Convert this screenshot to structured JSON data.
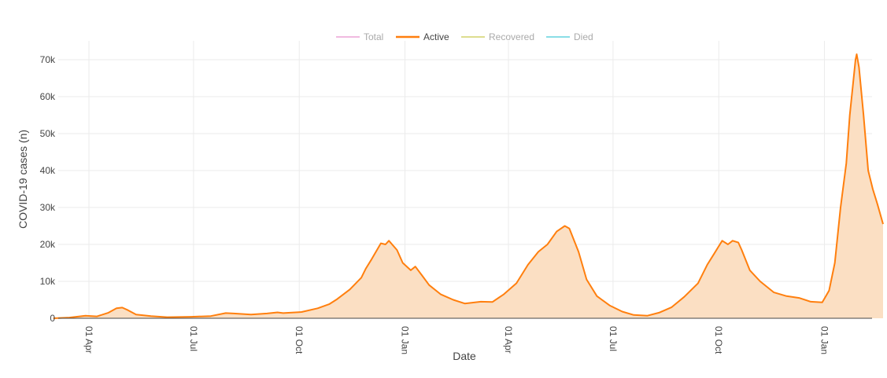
{
  "chart_data": {
    "type": "area",
    "xlabel": "Date",
    "ylabel": "COVID-19 cases (n)",
    "ylim": [
      0,
      71000
    ],
    "grid": true,
    "legend_position": "top-center",
    "x_tick_labels": [
      {
        "date": "2020-04-01",
        "label": "01 Apr"
      },
      {
        "date": "2020-07-01",
        "label": "01 Jul"
      },
      {
        "date": "2020-10-01",
        "label": "01 Oct"
      },
      {
        "date": "2021-01-01",
        "label": "01 Jan"
      },
      {
        "date": "2021-04-01",
        "label": "01 Apr"
      },
      {
        "date": "2021-07-01",
        "label": "01 Jul"
      },
      {
        "date": "2021-10-01",
        "label": "01 Oct"
      },
      {
        "date": "2022-01-01",
        "label": "01 Jan"
      }
    ],
    "y_ticks": [
      {
        "value": 0,
        "label": "0"
      },
      {
        "value": 10000,
        "label": "10k"
      },
      {
        "value": 20000,
        "label": "20k"
      },
      {
        "value": 30000,
        "label": "30k"
      },
      {
        "value": 40000,
        "label": "40k"
      },
      {
        "value": 50000,
        "label": "50k"
      },
      {
        "value": 60000,
        "label": "60k"
      },
      {
        "value": 70000,
        "label": "70k"
      }
    ],
    "legend": [
      {
        "name": "Total",
        "color": "#e377c2",
        "active": false
      },
      {
        "name": "Active",
        "color": "#ff7f0e",
        "active": true
      },
      {
        "name": "Recovered",
        "color": "#bcbd22",
        "active": false
      },
      {
        "name": "Died",
        "color": "#17becf",
        "active": false
      }
    ],
    "series": [
      {
        "name": "Active",
        "color": "#ff7f0e",
        "fill": "#fbdfc3",
        "points": [
          [
            "2020-03-01",
            0
          ],
          [
            "2020-03-15",
            200
          ],
          [
            "2020-03-29",
            700
          ],
          [
            "2020-04-08",
            500
          ],
          [
            "2020-04-18",
            1500
          ],
          [
            "2020-04-25",
            2700
          ],
          [
            "2020-04-30",
            2900
          ],
          [
            "2020-05-05",
            2200
          ],
          [
            "2020-05-12",
            1000
          ],
          [
            "2020-05-25",
            600
          ],
          [
            "2020-06-08",
            300
          ],
          [
            "2020-06-29",
            400
          ],
          [
            "2020-07-16",
            600
          ],
          [
            "2020-07-29",
            1400
          ],
          [
            "2020-08-05",
            1300
          ],
          [
            "2020-08-20",
            1000
          ],
          [
            "2020-09-03",
            1300
          ],
          [
            "2020-09-12",
            1600
          ],
          [
            "2020-09-17",
            1400
          ],
          [
            "2020-10-03",
            1700
          ],
          [
            "2020-10-17",
            2700
          ],
          [
            "2020-10-27",
            3800
          ],
          [
            "2020-11-03",
            5200
          ],
          [
            "2020-11-14",
            7800
          ],
          [
            "2020-11-24",
            11000
          ],
          [
            "2020-11-28",
            13500
          ],
          [
            "2020-12-03",
            16000
          ],
          [
            "2020-12-11",
            20300
          ],
          [
            "2020-12-15",
            20000
          ],
          [
            "2020-12-18",
            21000
          ],
          [
            "2020-12-25",
            18500
          ],
          [
            "2020-12-30",
            15000
          ],
          [
            "2021-01-06",
            13000
          ],
          [
            "2021-01-10",
            14000
          ],
          [
            "2021-01-16",
            11500
          ],
          [
            "2021-01-22",
            9000
          ],
          [
            "2021-02-01",
            6500
          ],
          [
            "2021-02-12",
            5000
          ],
          [
            "2021-02-22",
            4000
          ],
          [
            "2021-03-08",
            4500
          ],
          [
            "2021-03-18",
            4400
          ],
          [
            "2021-03-28",
            6500
          ],
          [
            "2021-04-08",
            9500
          ],
          [
            "2021-04-18",
            14500
          ],
          [
            "2021-04-27",
            18000
          ],
          [
            "2021-05-05",
            20000
          ],
          [
            "2021-05-13",
            23500
          ],
          [
            "2021-05-20",
            25000
          ],
          [
            "2021-05-24",
            24300
          ],
          [
            "2021-06-01",
            18000
          ],
          [
            "2021-06-08",
            10500
          ],
          [
            "2021-06-17",
            6000
          ],
          [
            "2021-06-28",
            3500
          ],
          [
            "2021-07-09",
            1800
          ],
          [
            "2021-07-19",
            900
          ],
          [
            "2021-07-31",
            700
          ],
          [
            "2021-08-10",
            1500
          ],
          [
            "2021-08-21",
            3000
          ],
          [
            "2021-09-01",
            5800
          ],
          [
            "2021-09-13",
            9500
          ],
          [
            "2021-09-21",
            14500
          ],
          [
            "2021-09-27",
            17500
          ],
          [
            "2021-10-01",
            19500
          ],
          [
            "2021-10-04",
            21000
          ],
          [
            "2021-10-09",
            20000
          ],
          [
            "2021-10-13",
            21000
          ],
          [
            "2021-10-18",
            20500
          ],
          [
            "2021-10-21",
            18500
          ],
          [
            "2021-10-28",
            13000
          ],
          [
            "2021-11-06",
            10000
          ],
          [
            "2021-11-18",
            7000
          ],
          [
            "2021-11-29",
            6000
          ],
          [
            "2021-12-10",
            5500
          ],
          [
            "2021-12-20",
            4500
          ],
          [
            "2021-12-30",
            4300
          ],
          [
            "2022-01-05",
            7500
          ],
          [
            "2022-01-10",
            15000
          ],
          [
            "2022-01-15",
            30000
          ],
          [
            "2022-01-20",
            42000
          ],
          [
            "2022-01-23",
            55000
          ],
          [
            "2022-01-26",
            64000
          ],
          [
            "2022-01-28",
            70000
          ],
          [
            "2022-01-29",
            71500
          ],
          [
            "2022-01-31",
            68000
          ],
          [
            "2022-02-04",
            55000
          ],
          [
            "2022-02-08",
            40000
          ],
          [
            "2022-02-12",
            35000
          ],
          [
            "2022-02-16",
            31000
          ],
          [
            "2022-02-21",
            25500
          ]
        ]
      }
    ]
  }
}
